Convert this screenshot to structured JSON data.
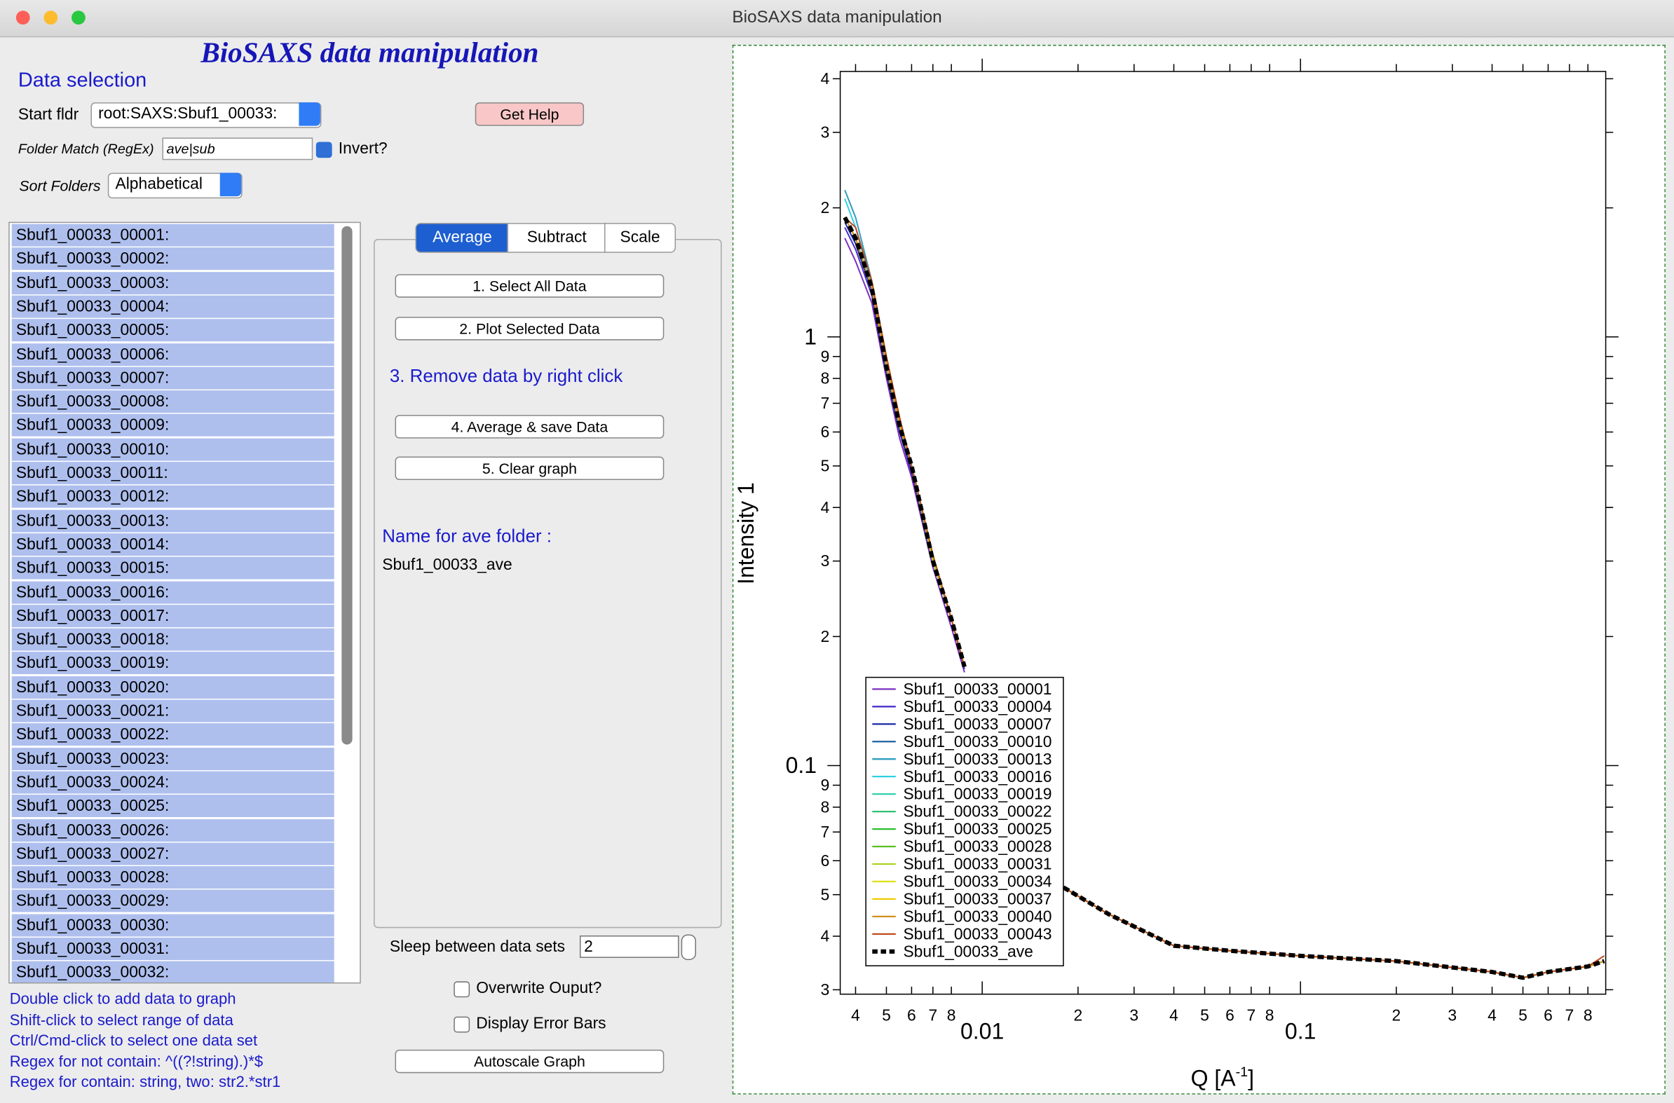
{
  "window_title": "BioSAXS data manipulation",
  "panel_title": "BioSAXS data manipulation",
  "data_selection": {
    "heading": "Data selection",
    "start_folder_label": "Start fldr",
    "start_folder_value": "root:SAXS:Sbuf1_00033:",
    "help_button": "Get Help",
    "folder_match_label": "Folder Match (RegEx)",
    "folder_match_value": "ave|sub",
    "invert_label": "Invert?",
    "sort_label": "Sort Folders",
    "sort_value": "Alphabetical"
  },
  "folders": [
    "Sbuf1_00033_00001:",
    "Sbuf1_00033_00002:",
    "Sbuf1_00033_00003:",
    "Sbuf1_00033_00004:",
    "Sbuf1_00033_00005:",
    "Sbuf1_00033_00006:",
    "Sbuf1_00033_00007:",
    "Sbuf1_00033_00008:",
    "Sbuf1_00033_00009:",
    "Sbuf1_00033_00010:",
    "Sbuf1_00033_00011:",
    "Sbuf1_00033_00012:",
    "Sbuf1_00033_00013:",
    "Sbuf1_00033_00014:",
    "Sbuf1_00033_00015:",
    "Sbuf1_00033_00016:",
    "Sbuf1_00033_00017:",
    "Sbuf1_00033_00018:",
    "Sbuf1_00033_00019:",
    "Sbuf1_00033_00020:",
    "Sbuf1_00033_00021:",
    "Sbuf1_00033_00022:",
    "Sbuf1_00033_00023:",
    "Sbuf1_00033_00024:",
    "Sbuf1_00033_00025:",
    "Sbuf1_00033_00026:",
    "Sbuf1_00033_00027:",
    "Sbuf1_00033_00028:",
    "Sbuf1_00033_00029:",
    "Sbuf1_00033_00030:",
    "Sbuf1_00033_00031:",
    "Sbuf1_00033_00032:"
  ],
  "tabs": [
    "Average",
    "Subtract",
    "Scale"
  ],
  "actions": {
    "select_all": "1. Select All Data",
    "plot": "2. Plot Selected Data",
    "remove_hint": "3. Remove data by right click",
    "average": "4. Average & save Data",
    "clear": "5. Clear graph",
    "name_label": "Name for ave folder :",
    "name_value": "Sbuf1_00033_ave"
  },
  "options": {
    "sleep_label": "Sleep between data sets",
    "sleep_value": "2",
    "overwrite": "Overwrite Ouput?",
    "error_bars": "Display Error Bars",
    "autoscale": "Autoscale Graph"
  },
  "help_lines": [
    "Double click to add data to graph",
    "Shift-click to select range of data",
    "Ctrl/Cmd-click to select one data set",
    "Regex for not contain: ^((?!string).)*$",
    "Regex for contain:  string, two: str2.*str1"
  ],
  "chart_data": {
    "type": "line",
    "log_x": true,
    "log_y": true,
    "ylabel": "Intensity 1",
    "xlabel": {
      "text": "Q [A",
      "superscript": "-1",
      "end": "]"
    },
    "xlim": [
      0.00358,
      0.91
    ],
    "ylim": [
      0.0293,
      4.16
    ],
    "xticks": [
      {
        "value": 0.004,
        "label": "4"
      },
      {
        "value": 0.005,
        "label": "5"
      },
      {
        "value": 0.006,
        "label": "6"
      },
      {
        "value": 0.007,
        "label": "7"
      },
      {
        "value": 0.008,
        "label": "8"
      },
      0.01,
      {
        "value": 0.02,
        "label": "2"
      },
      {
        "value": 0.03,
        "label": "3"
      },
      {
        "value": 0.04,
        "label": "4"
      },
      {
        "value": 0.05,
        "label": "5"
      },
      {
        "value": 0.06,
        "label": "6"
      },
      {
        "value": 0.07,
        "label": "7"
      },
      {
        "value": 0.08,
        "label": "8"
      },
      0.1,
      {
        "value": 0.2,
        "label": "2"
      },
      {
        "value": 0.3,
        "label": "3"
      },
      {
        "value": 0.4,
        "label": "4"
      },
      {
        "value": 0.5,
        "label": "5"
      },
      {
        "value": 0.6,
        "label": "6"
      },
      {
        "value": 0.7,
        "label": "7"
      },
      {
        "value": 0.8,
        "label": "8"
      }
    ],
    "yticks": [
      {
        "value": 0.03,
        "label": "3"
      },
      {
        "value": 0.04,
        "label": "4"
      },
      {
        "value": 0.05,
        "label": "5"
      },
      {
        "value": 0.06,
        "label": "6"
      },
      {
        "value": 0.07,
        "label": "7"
      },
      {
        "value": 0.08,
        "label": "8"
      },
      {
        "value": 0.09,
        "label": "9"
      },
      0.1,
      {
        "value": 0.2,
        "label": "2"
      },
      {
        "value": 0.3,
        "label": "3"
      },
      {
        "value": 0.4,
        "label": "4"
      },
      {
        "value": 0.5,
        "label": "5"
      },
      {
        "value": 0.6,
        "label": "6"
      },
      {
        "value": 0.7,
        "label": "7"
      },
      {
        "value": 0.8,
        "label": "8"
      },
      {
        "value": 0.9,
        "label": "9"
      },
      1,
      2,
      3,
      4
    ],
    "x": [
      0.0037,
      0.004,
      0.0045,
      0.005,
      0.0055,
      0.006,
      0.007,
      0.008,
      0.0088,
      0.012,
      0.018,
      0.025,
      0.04,
      0.06,
      0.1,
      0.2,
      0.4,
      0.5,
      0.6,
      0.8,
      0.9
    ],
    "series": [
      {
        "name": "Sbuf1_00033_00001",
        "color": "#7a2fc0",
        "values": [
          1.7,
          1.5,
          1.2,
          0.8,
          0.58,
          0.47,
          0.29,
          0.21,
          0.165,
          null,
          0.052,
          0.045,
          0.038,
          0.037,
          0.036,
          0.035,
          0.033,
          0.032,
          0.033,
          0.034,
          0.035
        ]
      },
      {
        "name": "Sbuf1_00033_00004",
        "color": "#4a2fcc",
        "values": [
          1.8,
          1.6,
          1.25,
          0.82,
          0.6,
          0.48,
          0.3,
          0.22,
          0.168,
          null,
          0.052,
          0.045,
          0.038,
          0.037,
          0.036,
          0.035,
          0.033,
          0.032,
          0.033,
          0.034,
          0.035
        ]
      },
      {
        "name": "Sbuf1_00033_00007",
        "color": "#1c2aa8",
        "values": [
          1.85,
          1.65,
          1.28,
          0.84,
          0.61,
          0.49,
          0.3,
          0.22,
          0.17,
          null,
          0.052,
          0.045,
          0.038,
          0.037,
          0.036,
          0.035,
          0.033,
          0.032,
          0.033,
          0.034,
          0.035
        ]
      },
      {
        "name": "Sbuf1_00033_00010",
        "color": "#1e5fa4",
        "values": [
          1.9,
          1.7,
          1.3,
          0.85,
          0.62,
          0.5,
          0.3,
          0.22,
          0.17,
          null,
          0.052,
          0.045,
          0.038,
          0.037,
          0.036,
          0.035,
          0.033,
          0.032,
          0.033,
          0.034,
          0.035
        ]
      },
      {
        "name": "Sbuf1_00033_00013",
        "color": "#2f9ec0",
        "values": [
          2.2,
          1.9,
          1.35,
          0.86,
          0.63,
          0.5,
          0.31,
          0.22,
          0.17,
          null,
          0.052,
          0.045,
          0.038,
          0.037,
          0.036,
          0.035,
          0.033,
          0.032,
          0.033,
          0.034,
          0.035
        ]
      },
      {
        "name": "Sbuf1_00033_00016",
        "color": "#2fd0e0",
        "values": [
          2.1,
          1.8,
          1.32,
          0.86,
          0.62,
          0.5,
          0.3,
          0.22,
          0.17,
          null,
          0.052,
          0.045,
          0.038,
          0.037,
          0.036,
          0.035,
          0.033,
          0.032,
          0.033,
          0.034,
          0.035
        ]
      },
      {
        "name": "Sbuf1_00033_00019",
        "color": "#30d0b0",
        "values": [
          1.9,
          1.7,
          1.3,
          0.85,
          0.62,
          0.5,
          0.3,
          0.22,
          0.17,
          null,
          0.052,
          0.045,
          0.038,
          0.037,
          0.036,
          0.035,
          0.033,
          0.032,
          0.033,
          0.034,
          0.035
        ]
      },
      {
        "name": "Sbuf1_00033_00022",
        "color": "#30c070",
        "values": [
          1.9,
          1.7,
          1.3,
          0.85,
          0.62,
          0.5,
          0.3,
          0.22,
          0.17,
          null,
          0.052,
          0.045,
          0.038,
          0.037,
          0.036,
          0.035,
          0.033,
          0.032,
          0.033,
          0.034,
          0.035
        ]
      },
      {
        "name": "Sbuf1_00033_00025",
        "color": "#30c030",
        "values": [
          1.9,
          1.7,
          1.3,
          0.85,
          0.62,
          0.5,
          0.3,
          0.22,
          0.17,
          null,
          0.052,
          0.045,
          0.038,
          0.037,
          0.036,
          0.035,
          0.033,
          0.032,
          0.033,
          0.034,
          0.035
        ]
      },
      {
        "name": "Sbuf1_00033_00028",
        "color": "#58c020",
        "values": [
          1.9,
          1.7,
          1.3,
          0.85,
          0.62,
          0.5,
          0.3,
          0.22,
          0.17,
          null,
          0.052,
          0.045,
          0.038,
          0.037,
          0.036,
          0.035,
          0.033,
          0.032,
          0.033,
          0.034,
          0.035
        ]
      },
      {
        "name": "Sbuf1_00033_00031",
        "color": "#a8d420",
        "values": [
          1.9,
          1.7,
          1.3,
          0.85,
          0.62,
          0.5,
          0.3,
          0.22,
          0.17,
          null,
          0.052,
          0.045,
          0.038,
          0.037,
          0.036,
          0.035,
          0.033,
          0.032,
          0.033,
          0.034,
          0.035
        ]
      },
      {
        "name": "Sbuf1_00033_00034",
        "color": "#e0e020",
        "values": [
          1.9,
          1.7,
          1.3,
          0.86,
          0.63,
          0.5,
          0.31,
          0.22,
          0.17,
          null,
          0.052,
          0.045,
          0.038,
          0.037,
          0.036,
          0.035,
          0.033,
          0.032,
          0.033,
          0.034,
          0.035
        ]
      },
      {
        "name": "Sbuf1_00033_00037",
        "color": "#f0cc00",
        "values": [
          1.9,
          1.7,
          1.3,
          0.86,
          0.63,
          0.5,
          0.31,
          0.22,
          0.17,
          null,
          0.052,
          0.045,
          0.038,
          0.037,
          0.036,
          0.035,
          0.033,
          0.032,
          0.033,
          0.034,
          0.035
        ]
      },
      {
        "name": "Sbuf1_00033_00040",
        "color": "#d09020",
        "values": [
          1.9,
          1.7,
          1.3,
          0.86,
          0.63,
          0.5,
          0.31,
          0.22,
          0.17,
          null,
          0.052,
          0.045,
          0.038,
          0.037,
          0.036,
          0.035,
          0.033,
          0.032,
          0.033,
          0.034,
          0.035
        ]
      },
      {
        "name": "Sbuf1_00033_00043",
        "color": "#c04a1c",
        "values": [
          1.9,
          1.8,
          1.35,
          0.9,
          0.65,
          0.5,
          0.31,
          0.22,
          0.17,
          null,
          0.052,
          0.045,
          0.038,
          0.037,
          0.036,
          0.035,
          0.033,
          0.032,
          0.033,
          0.034,
          0.036
        ]
      },
      {
        "name": "Sbuf1_00033_ave",
        "color": "#000000",
        "dashed": true,
        "values": [
          1.9,
          1.7,
          1.3,
          0.85,
          0.62,
          0.5,
          0.3,
          0.22,
          0.17,
          null,
          0.052,
          0.045,
          0.038,
          0.037,
          0.036,
          0.035,
          0.033,
          0.032,
          0.033,
          0.034,
          0.035
        ]
      }
    ]
  }
}
